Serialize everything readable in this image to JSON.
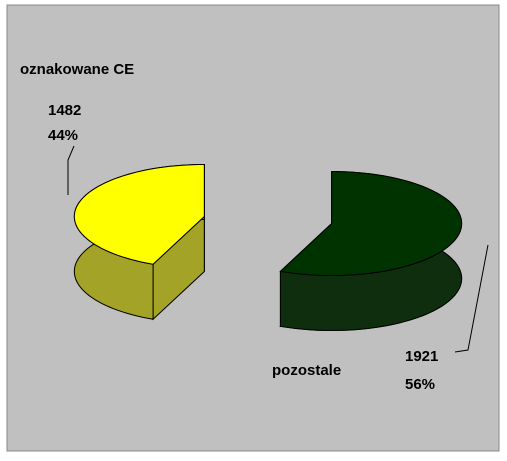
{
  "chart_data": {
    "type": "pie",
    "three_d": true,
    "exploded": true,
    "categories": [
      "oznakowane CE",
      "pozostale"
    ],
    "values": [
      1482,
      1921
    ],
    "percent_labels": [
      "44%",
      "56%"
    ],
    "colors": [
      "#ffff00",
      "#003300"
    ],
    "side_colors": [
      "#a3a327",
      "#0e2e0e"
    ]
  }
}
